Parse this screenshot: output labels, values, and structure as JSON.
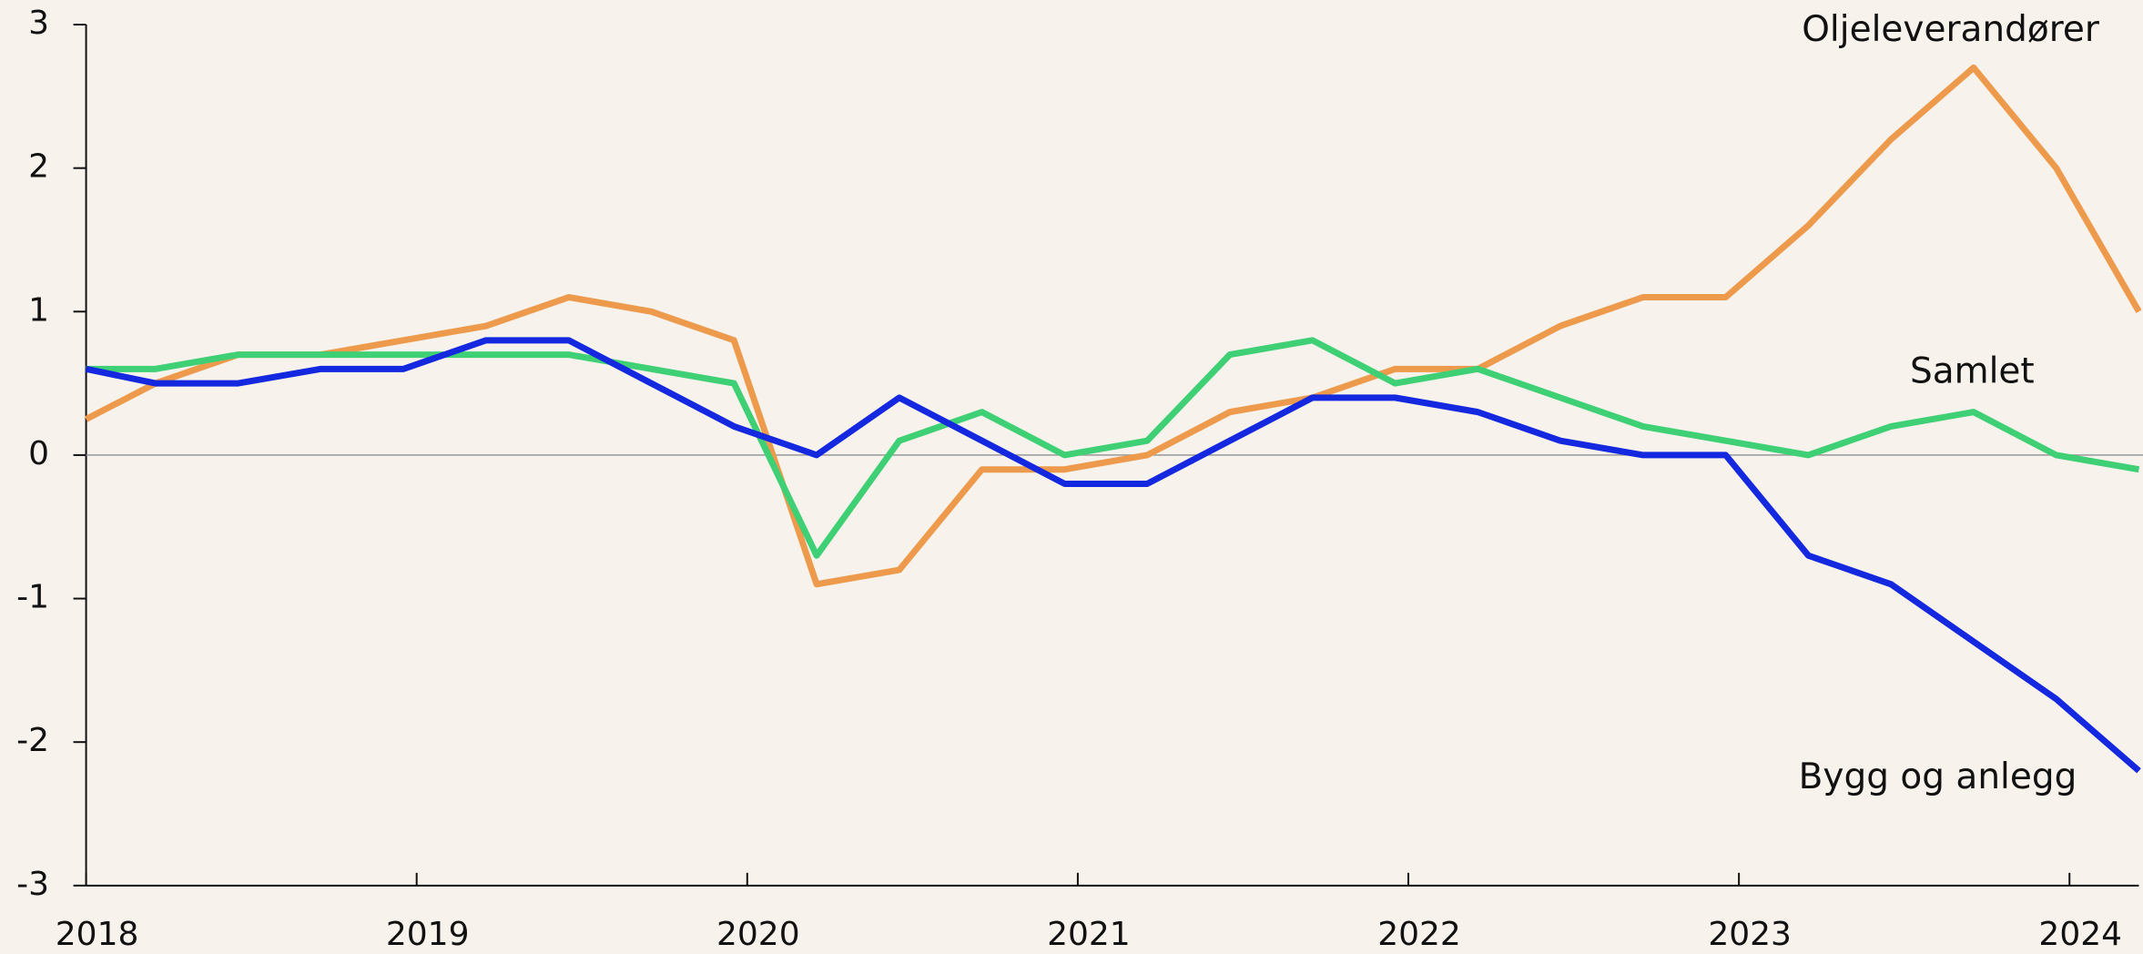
{
  "chart_data": {
    "type": "line",
    "x": [
      2018.0,
      2018.21,
      2018.46,
      2018.71,
      2018.96,
      2019.21,
      2019.46,
      2019.71,
      2019.96,
      2020.21,
      2020.46,
      2020.71,
      2020.96,
      2021.21,
      2021.46,
      2021.71,
      2021.96,
      2022.21,
      2022.46,
      2022.71,
      2022.96,
      2023.21,
      2023.46,
      2023.71,
      2023.96,
      2024.21
    ],
    "series": [
      {
        "name": "Oljeleverandører",
        "color": "#ee9a4d",
        "values": [
          0.25,
          0.5,
          0.7,
          0.7,
          0.8,
          0.9,
          1.1,
          1.0,
          0.8,
          -0.9,
          -0.8,
          -0.1,
          -0.1,
          0.0,
          0.3,
          0.4,
          0.6,
          0.6,
          0.9,
          1.1,
          1.1,
          1.6,
          2.2,
          2.7,
          2.0,
          1.0
        ]
      },
      {
        "name": "Samlet",
        "color": "#3fcf74",
        "values": [
          0.6,
          0.6,
          0.7,
          0.7,
          0.7,
          0.7,
          0.7,
          0.6,
          0.5,
          -0.7,
          0.1,
          0.3,
          0.0,
          0.1,
          0.7,
          0.8,
          0.5,
          0.6,
          0.4,
          0.2,
          0.1,
          0.0,
          0.2,
          0.3,
          0.0,
          -0.1
        ]
      },
      {
        "name": "Bygg og anlegg",
        "color": "#1428e0",
        "values": [
          0.6,
          0.5,
          0.5,
          0.6,
          0.6,
          0.8,
          0.8,
          0.5,
          0.2,
          0.0,
          0.4,
          0.1,
          -0.2,
          -0.2,
          0.1,
          0.4,
          0.4,
          0.3,
          0.1,
          0.0,
          0.0,
          -0.7,
          -0.9,
          -1.3,
          -1.7,
          -2.2
        ]
      }
    ],
    "xlim": [
      2018,
      2024.21
    ],
    "xticks": [
      2018,
      2019,
      2020,
      2021,
      2022,
      2023,
      2024
    ],
    "ylim": [
      -3,
      3
    ],
    "yticks": [
      -3,
      -2,
      -1,
      0,
      1,
      2,
      3
    ]
  }
}
